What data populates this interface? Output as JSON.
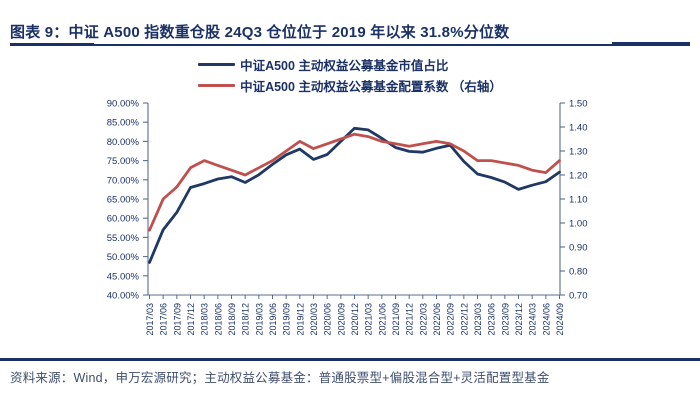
{
  "figure": {
    "title": "图表 9：中证 A500 指数重仓股 24Q3 仓位位于 2019 年以来 31.8%分位数",
    "source_note": "资料来源：Wind，申万宏源研究；主动权益公募基金：普通股票型+偏股混合型+灵活配置型基金"
  },
  "legend": [
    {
      "label": "中证A500 主动权益公募基金市值占比",
      "color": "#1f3864"
    },
    {
      "label": "中证A500 主动权益公募基金配置系数 （右轴）",
      "color": "#c0504d"
    }
  ],
  "colors": {
    "accent_navy": "#1b3166",
    "line_blue": "#1f3864",
    "line_red": "#c0504d",
    "axis_line": "#5b6b8f",
    "tick_text": "#1b3166"
  },
  "chart_data": {
    "type": "line",
    "title": "",
    "xlabel": "",
    "ylabel_left": "",
    "ylabel_right": "",
    "grid": false,
    "legend_position": "top-center",
    "categories": [
      "2017/03",
      "2017/06",
      "2017/09",
      "2017/12",
      "2018/03",
      "2018/06",
      "2018/09",
      "2018/12",
      "2019/03",
      "2019/06",
      "2019/09",
      "2019/12",
      "2020/03",
      "2020/06",
      "2020/09",
      "2020/12",
      "2021/03",
      "2021/06",
      "2021/09",
      "2021/12",
      "2022/03",
      "2022/06",
      "2022/09",
      "2022/12",
      "2023/03",
      "2023/06",
      "2023/09",
      "2023/12",
      "2024/03",
      "2024/06",
      "2024/09"
    ],
    "series": [
      {
        "name": "中证A500 主动权益公募基金市值占比",
        "axis": "left",
        "unit": "%",
        "color": "#1f3864",
        "values": [
          48.5,
          57.0,
          61.5,
          68.0,
          69.0,
          70.2,
          70.8,
          69.3,
          71.3,
          74.0,
          76.5,
          78.0,
          75.3,
          76.6,
          80.0,
          83.4,
          83.0,
          80.8,
          78.4,
          77.4,
          77.2,
          78.2,
          79.0,
          74.8,
          71.5,
          70.6,
          69.4,
          67.5,
          68.6,
          69.5,
          72.0
        ]
      },
      {
        "name": "中证A500 主动权益公募基金配置系数 （右轴）",
        "axis": "right",
        "unit": "",
        "color": "#c0504d",
        "values": [
          0.97,
          1.1,
          1.15,
          1.23,
          1.26,
          1.24,
          1.22,
          1.2,
          1.23,
          1.26,
          1.3,
          1.34,
          1.31,
          1.33,
          1.35,
          1.37,
          1.36,
          1.34,
          1.33,
          1.32,
          1.33,
          1.34,
          1.33,
          1.3,
          1.26,
          1.26,
          1.25,
          1.24,
          1.22,
          1.21,
          1.26
        ]
      }
    ],
    "left_axis": {
      "min": 40,
      "max": 90,
      "tick_labels": [
        "90.00%",
        "85.00%",
        "80.00%",
        "75.00%",
        "70.00%",
        "65.00%",
        "60.00%",
        "55.00%",
        "50.00%",
        "45.00%",
        "40.00%"
      ]
    },
    "right_axis": {
      "min": 0.7,
      "max": 1.5,
      "tick_labels": [
        "1.50",
        "1.40",
        "1.30",
        "1.20",
        "1.10",
        "1.00",
        "0.90",
        "0.80",
        "0.70"
      ]
    }
  }
}
